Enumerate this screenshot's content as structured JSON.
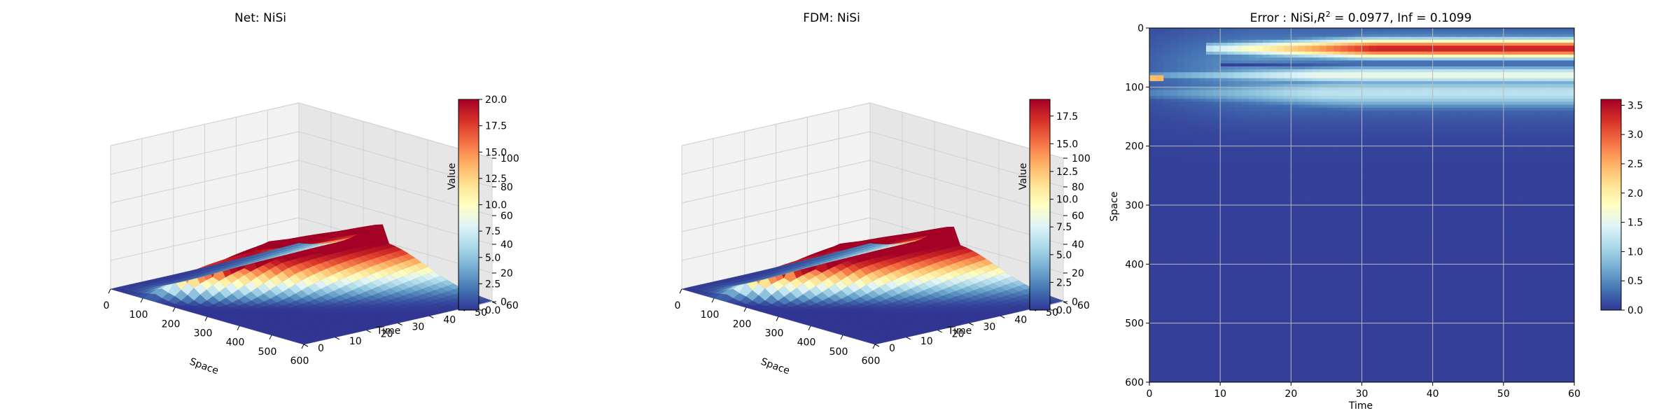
{
  "chart_data": [
    {
      "type": "surface3d",
      "title": "Net: NiSi",
      "xlabel": "Space",
      "ylabel": "Time",
      "zlabel": "Value",
      "xlim": [
        0,
        600
      ],
      "ylim": [
        0,
        60
      ],
      "zlim": [
        0,
        100
      ],
      "x_ticks": [
        "0",
        "100",
        "200",
        "300",
        "400",
        "500",
        "600"
      ],
      "y_ticks": [
        "0",
        "10",
        "20",
        "30",
        "40",
        "50",
        "60"
      ],
      "z_ticks": [
        "0",
        "20",
        "40",
        "60",
        "80",
        "100"
      ],
      "grid": true,
      "colormap": "RdYlBu_r",
      "peak_value": 20.0,
      "colorbar": {
        "min": 0,
        "max": 20,
        "ticks": [
          "0.0",
          "2.5",
          "5.0",
          "7.5",
          "10.0",
          "12.5",
          "15.0",
          "17.5",
          "20.0"
        ]
      }
    },
    {
      "type": "surface3d",
      "title": "FDM: NiSi",
      "xlabel": "Space",
      "ylabel": "Time",
      "zlabel": "Value",
      "xlim": [
        0,
        600
      ],
      "ylim": [
        0,
        60
      ],
      "zlim": [
        0,
        100
      ],
      "x_ticks": [
        "0",
        "100",
        "200",
        "300",
        "400",
        "500",
        "600"
      ],
      "y_ticks": [
        "0",
        "10",
        "20",
        "30",
        "40",
        "50",
        "60"
      ],
      "z_ticks": [
        "0",
        "20",
        "40",
        "60",
        "80",
        "100"
      ],
      "grid": true,
      "colormap": "RdYlBu_r",
      "peak_value": 19.0,
      "colorbar": {
        "min": 0,
        "max": 19,
        "ticks": [
          "0.0",
          "2.5",
          "5.0",
          "7.5",
          "10.0",
          "12.5",
          "15.0",
          "17.5"
        ]
      }
    },
    {
      "type": "heatmap",
      "title_parts": {
        "prefix": "Error : NiSi,",
        "r": "R",
        "sup": "2",
        "suffix": " = 0.0977, Inf = 0.1099"
      },
      "xlabel": "Time",
      "ylabel": "Space",
      "xlim": [
        0,
        60
      ],
      "ylim": [
        600,
        0
      ],
      "x_ticks": [
        "0",
        "10",
        "20",
        "30",
        "40",
        "50",
        "60"
      ],
      "y_ticks": [
        "0",
        "100",
        "200",
        "300",
        "400",
        "500",
        "600"
      ],
      "grid": true,
      "colormap": "RdYlBu_r",
      "max_value": 3.6,
      "colorbar": {
        "min": 0,
        "max": 3.6,
        "ticks": [
          "0.0",
          "0.5",
          "1.0",
          "1.5",
          "2.0",
          "2.5",
          "3.0",
          "3.5"
        ]
      },
      "bands": [
        {
          "space_center": 35,
          "width": 16,
          "value": 3.4,
          "onset_time": 8
        },
        {
          "space_center": 62,
          "width": 5,
          "value": 0.0,
          "onset_time": 10
        },
        {
          "space_center": 80,
          "width": 14,
          "value": 1.6,
          "onset_time": 0
        },
        {
          "space_center": 85,
          "width": 8,
          "value": 3.5,
          "onset_time": 0,
          "until_time": 2
        },
        {
          "space_center": 110,
          "width": 25,
          "value": 1.2,
          "onset_time": 0
        },
        {
          "space_center": 10,
          "width": 8,
          "value": 0.4,
          "onset_time": 10
        }
      ]
    }
  ]
}
